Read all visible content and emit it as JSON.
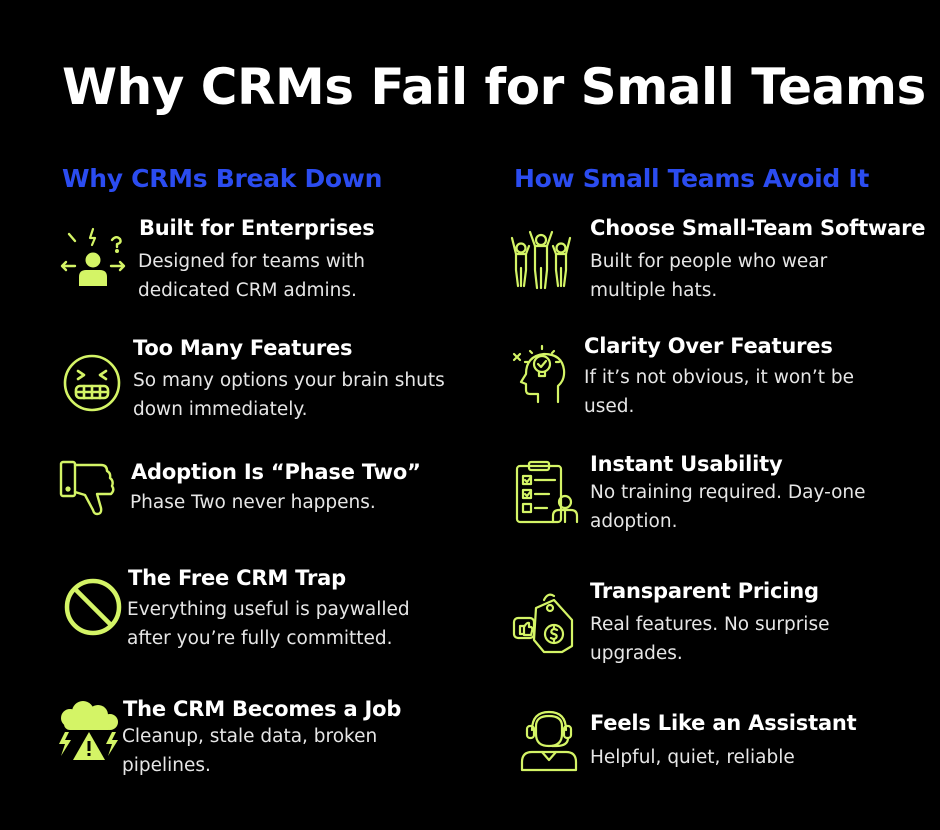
{
  "title": "Why CRMs Fail for Small Teams",
  "colors": {
    "background": "#000000",
    "heading_blue": "#2b4cf0",
    "icon_lime": "#d4f466",
    "text": "#ffffff"
  },
  "left": {
    "heading": "Why CRMs Break Down",
    "items": [
      {
        "icon": "frustrated-person-icon",
        "title": "Built for Enterprises",
        "desc": "Designed for teams with dedicated CRM admins."
      },
      {
        "icon": "grimace-face-icon",
        "title": "Too Many Features",
        "desc": "So many options your brain shuts down immediately."
      },
      {
        "icon": "thumbs-down-icon",
        "title": "Adoption Is “Phase Two”",
        "desc": "Phase Two never happens."
      },
      {
        "icon": "prohibited-icon",
        "title": "The Free CRM Trap",
        "desc": "Everything useful is paywalled after you’re fully committed."
      },
      {
        "icon": "storm-warning-icon",
        "title": "The CRM Becomes a Job",
        "desc": "Cleanup, stale data, broken pipelines."
      }
    ]
  },
  "right": {
    "heading": "How Small Teams Avoid It",
    "items": [
      {
        "icon": "team-celebrating-icon",
        "title": "Choose Small-Team Software",
        "desc": "Built for people who wear multiple hats."
      },
      {
        "icon": "lightbulb-head-icon",
        "title": "Clarity Over Features",
        "desc": "If it’s not obvious, it won’t be used."
      },
      {
        "icon": "checklist-clipboard-icon",
        "title": "Instant Usability",
        "desc": "No training required. Day-one adoption."
      },
      {
        "icon": "price-tag-icon",
        "title": "Transparent Pricing",
        "desc": "Real features. No surprise upgrades."
      },
      {
        "icon": "headset-assistant-icon",
        "title": "Feels Like an Assistant",
        "desc": "Helpful, quiet, reliable"
      }
    ]
  }
}
